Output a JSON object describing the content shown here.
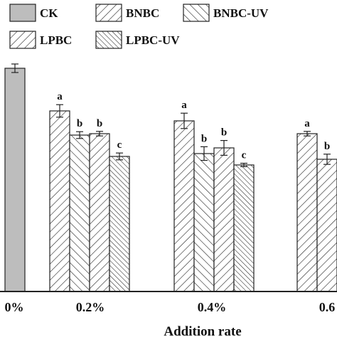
{
  "chart_data": {
    "type": "bar",
    "title": "",
    "xlabel": "Addition rate",
    "ylabel": "",
    "ylim": [
      0,
      100
    ],
    "categories": [
      "0%",
      "0.2%",
      "0.4%",
      "0.6"
    ],
    "series": [
      {
        "name": "CK",
        "fill": "#bdbdbd",
        "pattern": "solid",
        "values": [
          78.5,
          null,
          null,
          null
        ],
        "errors": [
          1.5,
          null,
          null,
          null
        ],
        "labels": [
          null,
          null,
          null,
          null
        ]
      },
      {
        "name": "BNBC",
        "fill": "#ffffff",
        "pattern": "forward-hatch",
        "values": [
          null,
          63.5,
          60.0,
          55.5
        ],
        "errors": [
          null,
          2.2,
          2.7,
          0.8
        ],
        "labels": [
          null,
          "a",
          "a",
          "a"
        ]
      },
      {
        "name": "BNBC-UV",
        "fill": "#ffffff",
        "pattern": "back-hatch",
        "values": [
          null,
          55.0,
          48.5,
          null
        ],
        "errors": [
          null,
          1.2,
          2.4,
          null
        ],
        "labels": [
          null,
          "b",
          "b",
          null
        ]
      },
      {
        "name": "LPBC",
        "fill": "#ffffff",
        "pattern": "forward-hatch",
        "values": [
          null,
          55.5,
          50.5,
          46.5
        ],
        "errors": [
          null,
          0.8,
          2.6,
          1.8
        ],
        "labels": [
          null,
          "b",
          "b",
          "b"
        ]
      },
      {
        "name": "LPBC-UV",
        "fill": "#ffffff",
        "pattern": "back-hatch-dense",
        "values": [
          null,
          47.5,
          44.5,
          null
        ],
        "errors": [
          null,
          1.2,
          0.6,
          null
        ],
        "labels": [
          null,
          "c",
          "c",
          null
        ]
      }
    ],
    "legend_position": "top-left",
    "grid": false
  }
}
